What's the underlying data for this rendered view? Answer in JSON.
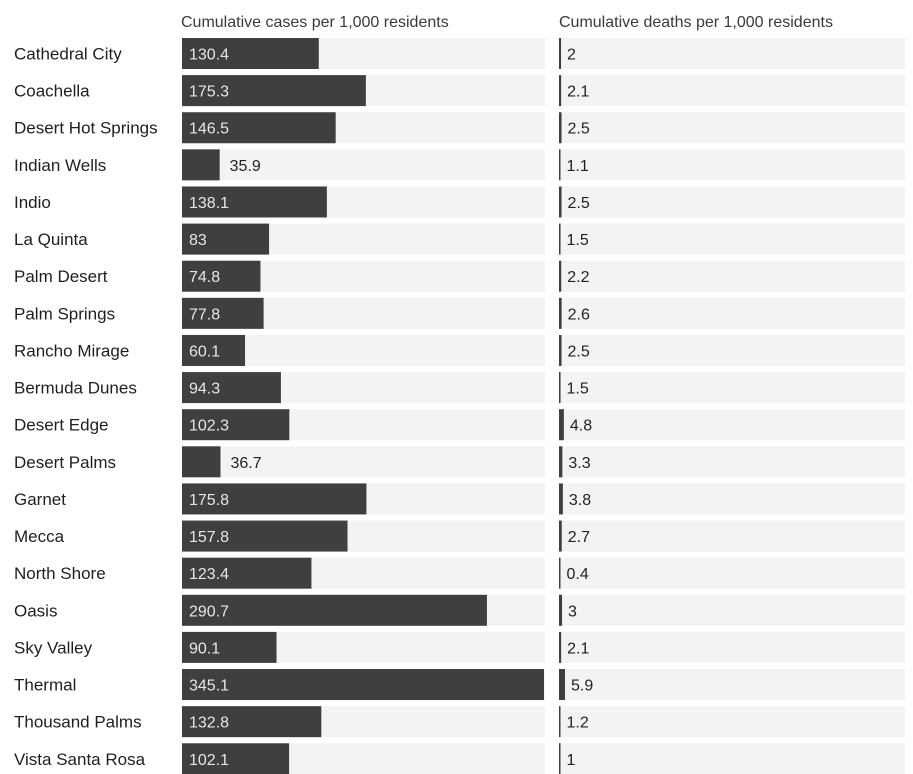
{
  "chart_data": {
    "type": "table",
    "columns": [
      {
        "name": "Cumulative cases per 1,000 residents",
        "key": "cases"
      },
      {
        "name": "Cumulative deaths per 1,000 residents",
        "key": "deaths"
      }
    ],
    "rows": [
      {
        "label": "Cathedral City",
        "cases": 130.4,
        "cases_label": "130.4",
        "deaths": 2,
        "deaths_label": "2"
      },
      {
        "label": "Coachella",
        "cases": 175.3,
        "cases_label": "175.3",
        "deaths": 2.1,
        "deaths_label": "2.1"
      },
      {
        "label": "Desert Hot Springs",
        "cases": 146.5,
        "cases_label": "146.5",
        "deaths": 2.5,
        "deaths_label": "2.5"
      },
      {
        "label": "Indian Wells",
        "cases": 35.9,
        "cases_label": "35.9",
        "deaths": 1.1,
        "deaths_label": "1.1"
      },
      {
        "label": "Indio",
        "cases": 138.1,
        "cases_label": "138.1",
        "deaths": 2.5,
        "deaths_label": "2.5"
      },
      {
        "label": "La Quinta",
        "cases": 83,
        "cases_label": "83",
        "deaths": 1.5,
        "deaths_label": "1.5"
      },
      {
        "label": "Palm Desert",
        "cases": 74.8,
        "cases_label": "74.8",
        "deaths": 2.2,
        "deaths_label": "2.2"
      },
      {
        "label": "Palm Springs",
        "cases": 77.8,
        "cases_label": "77.8",
        "deaths": 2.6,
        "deaths_label": "2.6"
      },
      {
        "label": "Rancho Mirage",
        "cases": 60.1,
        "cases_label": "60.1",
        "deaths": 2.5,
        "deaths_label": "2.5"
      },
      {
        "label": "Bermuda Dunes",
        "cases": 94.3,
        "cases_label": "94.3",
        "deaths": 1.5,
        "deaths_label": "1.5"
      },
      {
        "label": "Desert Edge",
        "cases": 102.3,
        "cases_label": "102.3",
        "deaths": 4.8,
        "deaths_label": "4.8"
      },
      {
        "label": "Desert Palms",
        "cases": 36.7,
        "cases_label": "36.7",
        "deaths": 3.3,
        "deaths_label": "3.3"
      },
      {
        "label": "Garnet",
        "cases": 175.8,
        "cases_label": "175.8",
        "deaths": 3.8,
        "deaths_label": "3.8"
      },
      {
        "label": "Mecca",
        "cases": 157.8,
        "cases_label": "157.8",
        "deaths": 2.7,
        "deaths_label": "2.7"
      },
      {
        "label": "North Shore",
        "cases": 123.4,
        "cases_label": "123.4",
        "deaths": 0.4,
        "deaths_label": "0.4"
      },
      {
        "label": "Oasis",
        "cases": 290.7,
        "cases_label": "290.7",
        "deaths": 3,
        "deaths_label": "3"
      },
      {
        "label": "Sky Valley",
        "cases": 90.1,
        "cases_label": "90.1",
        "deaths": 2.1,
        "deaths_label": "2.1"
      },
      {
        "label": "Thermal",
        "cases": 345.1,
        "cases_label": "345.1",
        "deaths": 5.9,
        "deaths_label": "5.9"
      },
      {
        "label": "Thousand Palms",
        "cases": 132.8,
        "cases_label": "132.8",
        "deaths": 1.2,
        "deaths_label": "1.2"
      },
      {
        "label": "Vista Santa Rosa",
        "cases": 102.1,
        "cases_label": "102.1",
        "deaths": 1,
        "deaths_label": "1"
      }
    ],
    "bar_color": "#3f3f3f",
    "row_background_color": "#f3f3f3",
    "inside_label_color": "#e6e6e6",
    "outside_label_color": "#222222"
  }
}
